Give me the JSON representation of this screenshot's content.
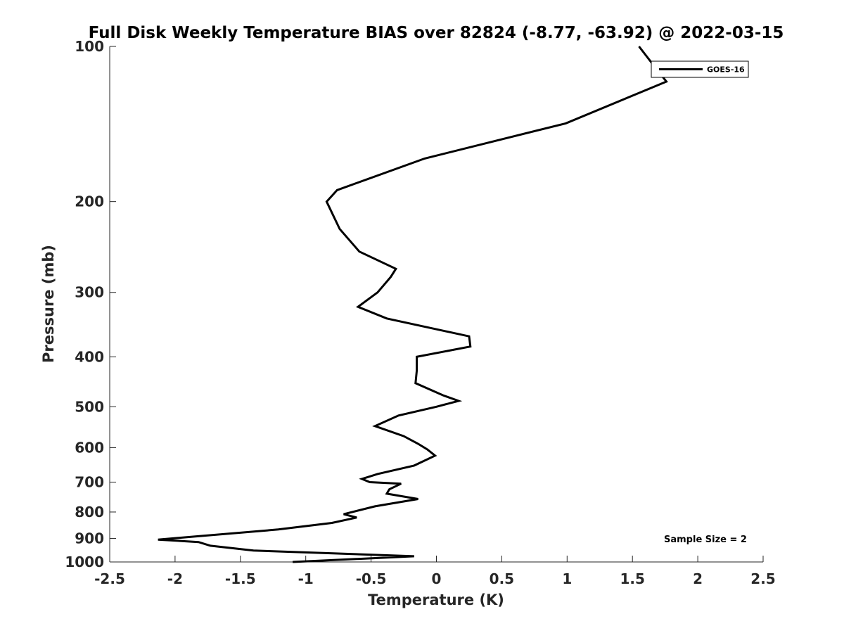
{
  "chart_data": {
    "type": "line",
    "title": "Full Disk Weekly Temperature BIAS over 82824 (-8.77, -63.92) @ 2022-03-15",
    "xlabel": "Temperature (K)",
    "ylabel": "Pressure (mb)",
    "xlim": [
      -2.5,
      2.5
    ],
    "ylim": [
      100,
      1000
    ],
    "y_scale": "log",
    "y_reversed": true,
    "grid": false,
    "legend_position": "top-right",
    "xticks": [
      -2.5,
      -2,
      -1.5,
      -1,
      -0.5,
      0,
      0.5,
      1,
      1.5,
      2,
      2.5
    ],
    "xtick_labels": [
      "-2.5",
      "-2",
      "-1.5",
      "-1",
      "-0.5",
      "0",
      "0.5",
      "1",
      "1.5",
      "2",
      "2.5"
    ],
    "yticks": [
      100,
      200,
      300,
      400,
      500,
      600,
      700,
      800,
      900,
      1000
    ],
    "ytick_labels": [
      "100",
      "200",
      "300",
      "400",
      "500",
      "600",
      "700",
      "800",
      "900",
      "1000"
    ],
    "series": [
      {
        "name": "GOES-16",
        "color": "#000000",
        "points": [
          [
            1.55,
            100
          ],
          [
            1.7,
            112
          ],
          [
            1.76,
            117
          ],
          [
            0.99,
            141
          ],
          [
            -0.09,
            165
          ],
          [
            -0.76,
            190
          ],
          [
            -0.84,
            200
          ],
          [
            -0.74,
            226
          ],
          [
            -0.59,
            250
          ],
          [
            -0.31,
            270
          ],
          [
            -0.35,
            280
          ],
          [
            -0.45,
            300
          ],
          [
            -0.6,
            320
          ],
          [
            -0.38,
            337
          ],
          [
            0.25,
            365
          ],
          [
            0.26,
            382
          ],
          [
            -0.15,
            400
          ],
          [
            -0.15,
            425
          ],
          [
            -0.16,
            450
          ],
          [
            0.05,
            475
          ],
          [
            0.17,
            487
          ],
          [
            0.0,
            500
          ],
          [
            -0.29,
            520
          ],
          [
            -0.47,
            545
          ],
          [
            -0.25,
            570
          ],
          [
            -0.14,
            590
          ],
          [
            -0.07,
            605
          ],
          [
            -0.01,
            622
          ],
          [
            -0.17,
            650
          ],
          [
            -0.45,
            675
          ],
          [
            -0.57,
            690
          ],
          [
            -0.51,
            700
          ],
          [
            -0.27,
            705
          ],
          [
            -0.36,
            723
          ],
          [
            -0.38,
            737
          ],
          [
            -0.14,
            755
          ],
          [
            -0.47,
            780
          ],
          [
            -0.71,
            808
          ],
          [
            -0.61,
            820
          ],
          [
            -0.8,
            840
          ],
          [
            -1.21,
            865
          ],
          [
            -2.13,
            905
          ],
          [
            -1.82,
            915
          ],
          [
            -1.73,
            930
          ],
          [
            -1.4,
            950
          ],
          [
            -0.17,
            975
          ],
          [
            -1.1,
            1000
          ]
        ]
      }
    ],
    "annotations": [
      "Sample Size = 2"
    ]
  }
}
